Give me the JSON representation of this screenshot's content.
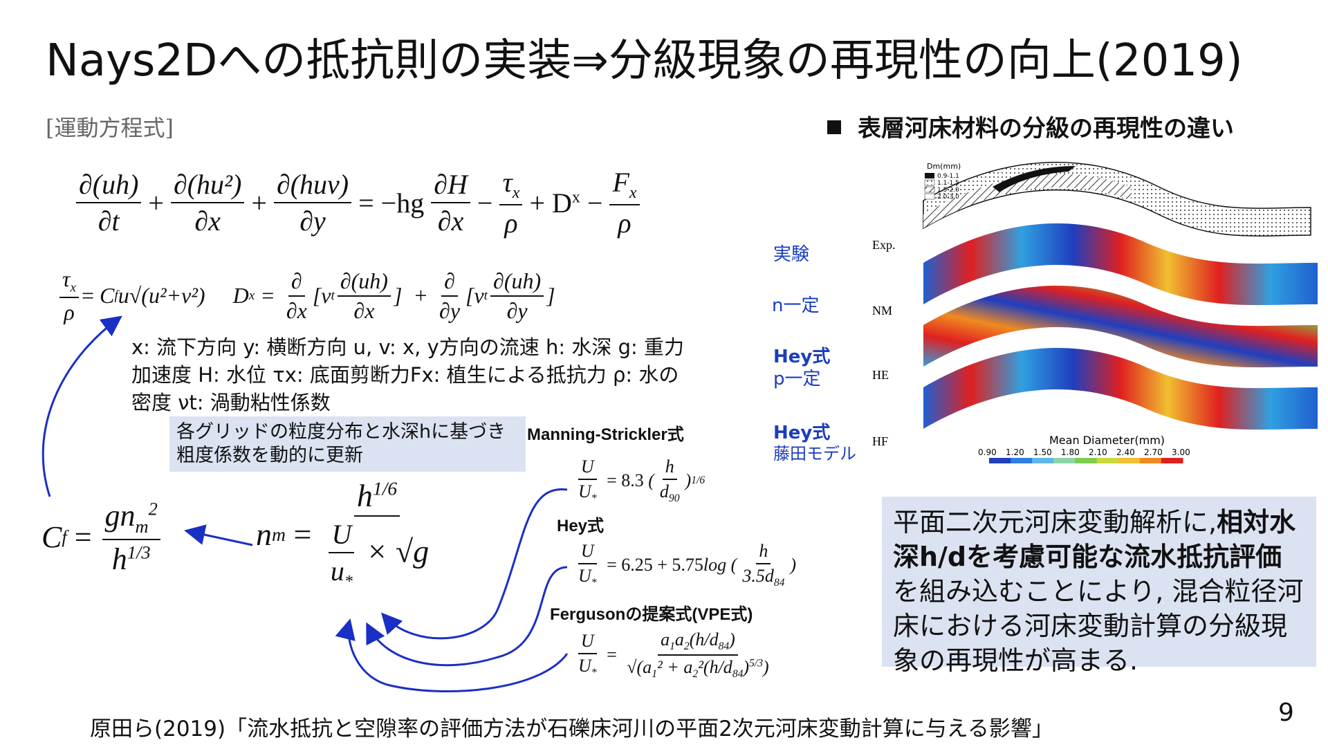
{
  "title": "Nays2Dへの抵抗則の実装⇒分級現象の再現性の向上(2019)",
  "equation_section_label": "[運動方程式]",
  "variable_description": "x: 流下方向 y: 横断方向 u, v: x, y方向の流速 h: 水深 g: 重力加速度 H: 水位 τx: 底面剪断力Fx: 植生による抵抗力 ρ: 水の密度 νt: 渦動粘性係数",
  "callout_text": "各グリッドの粒度分布と水深hに基づき粗度係数を動的に更新",
  "formulas": {
    "manning_label": "Manning-Strickler式",
    "manning_coef": "8.3",
    "hey_label": "Hey式",
    "hey_coef_a": "6.25",
    "hey_coef_b": "5.75",
    "ferguson_label": "Fergusonの提案式(VPE式)"
  },
  "right_panel": {
    "title": "表層河床材料の分級の再現性の違い",
    "labels": {
      "exp": "実験",
      "n_const": "n一定",
      "hey_p_1": "Hey式",
      "hey_p_2": "p一定",
      "hey_f_1": "Hey式",
      "hey_f_2": "藤田モデル"
    },
    "row_codes": [
      "Exp.",
      "NM",
      "HE",
      "HF"
    ],
    "legend_title_top": "Dm(mm)",
    "legend_items_top": [
      "0.9-1.1",
      "1.1-1.5",
      "1.5-2.0",
      "2.0-3.0"
    ],
    "colorbar_title": "Mean Diameter(mm)",
    "colorbar_ticks": [
      "0.90",
      "1.20",
      "1.50",
      "1.80",
      "2.10",
      "2.40",
      "2.70",
      "3.00"
    ],
    "colorbar_colors": [
      "#1f3fbf",
      "#2f7fe0",
      "#5fb7e8",
      "#8fd4a8",
      "#7ecb4f",
      "#c9d83a",
      "#f0c030",
      "#f08a20",
      "#e02020"
    ]
  },
  "summary": {
    "p1": "平面二次元河床変動解析に,",
    "p2": "相対水深h/dを考慮可能な流水抵抗評価",
    "p3": "を組み込むことにより, 混合粒径河床における河床変動計算の分級現象の再現性が高まる."
  },
  "footer": "原田ら(2019)「流水抵抗と空隙率の評価方法が石礫床河川の平面2次元河床変動計算に与える影響」",
  "page_number": "9"
}
